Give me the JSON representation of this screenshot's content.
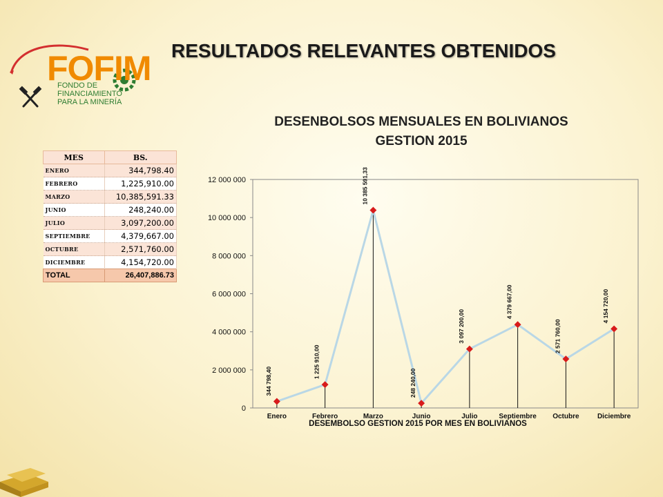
{
  "logo": {
    "word": "FOFIM",
    "sub_lines": [
      "FONDO DE",
      "FINANCIAMIENTO",
      "PARA LA MINERÍA"
    ]
  },
  "main_title": "RESULTADOS RELEVANTES OBTENIDOS",
  "chart_title_lines": [
    "DESENBOLSOS MENSUALES EN BOLIVIANOS",
    "GESTION 2015"
  ],
  "table": {
    "headers": [
      "MES",
      "BS."
    ],
    "rows": [
      {
        "mes": "ENERO",
        "bs": "344,798.40"
      },
      {
        "mes": "FEBRERO",
        "bs": "1,225,910.00"
      },
      {
        "mes": "MARZO",
        "bs": "10,385,591.33"
      },
      {
        "mes": "JUNIO",
        "bs": "248,240.00"
      },
      {
        "mes": "JULIO",
        "bs": "3,097,200.00"
      },
      {
        "mes": "SEPTIEMBRE",
        "bs": "4,379,667.00"
      },
      {
        "mes": "OCTUBRE",
        "bs": "2,571,760.00"
      },
      {
        "mes": "DICIEMBRE",
        "bs": "4,154,720.00"
      }
    ],
    "total": {
      "label": "TOTAL",
      "bs": "26,407,886.73"
    }
  },
  "chart_data": {
    "type": "line",
    "title": "DESENBOLSOS MENSUALES EN BOLIVIANOS GESTION 2015",
    "xlabel": "DESEMBOLSO GESTION 2015 POR MES EN BOLIVIANOS",
    "ylabel": "",
    "categories": [
      "Enero",
      "Febrero",
      "Marzo",
      "Junio",
      "Julio",
      "Septiembre",
      "Octubre",
      "Diciembre"
    ],
    "values": [
      344798.4,
      1225910.0,
      10385591.33,
      248240.0,
      3097200.0,
      4379667.0,
      2571760.0,
      4154720.0
    ],
    "data_labels": [
      "344 798,40",
      "1 225 910,00",
      "10 385 591,33",
      "248 240,00",
      "3 097 200,00",
      "4 379 667,00",
      "2 571 760,00",
      "4 154 720,00"
    ],
    "y_ticks": [
      "0",
      "2 000 000",
      "4 000 000",
      "6 000 000",
      "8 000 000",
      "10 000 000",
      "12 000 000"
    ],
    "ylim": [
      0,
      12000000
    ],
    "grid": false,
    "line_color": "#b9d7e6",
    "marker_color": "#d81b1b",
    "drop_line_color": "#111111"
  }
}
